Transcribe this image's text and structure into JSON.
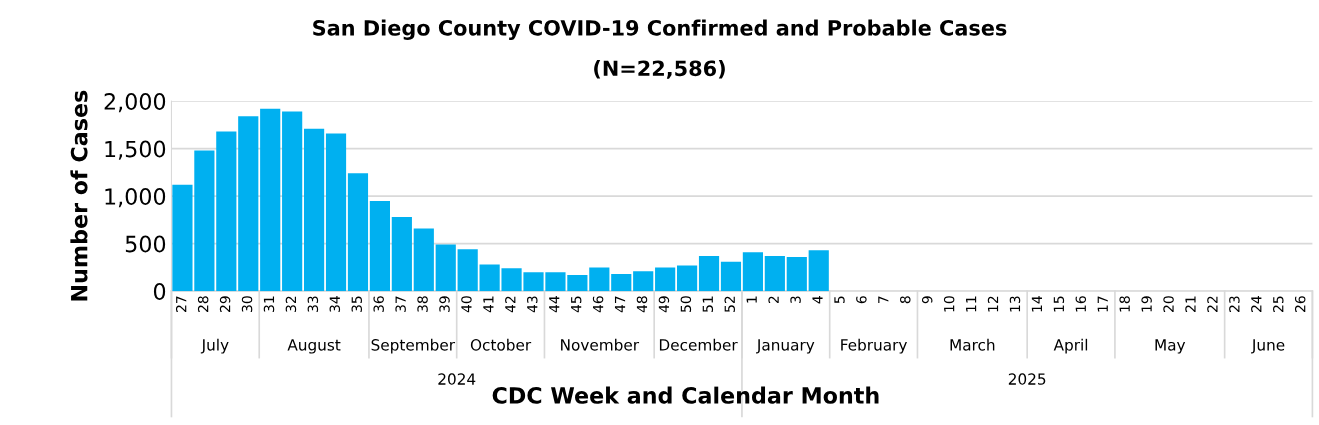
{
  "chart_data": {
    "type": "bar",
    "title": "San Diego County COVID-19 Confirmed and Probable Cases",
    "subtitle": "(N=22,586)",
    "xlabel": "CDC Week and Calendar Month",
    "ylabel": "Number of Cases",
    "categories": [
      "27",
      "28",
      "29",
      "30",
      "31",
      "32",
      "33",
      "34",
      "35",
      "36",
      "37",
      "38",
      "39",
      "40",
      "41",
      "42",
      "43",
      "44",
      "45",
      "46",
      "47",
      "48",
      "49",
      "50",
      "51",
      "52",
      "1",
      "2",
      "3",
      "4",
      "5",
      "6",
      "7",
      "8",
      "9",
      "10",
      "11",
      "12",
      "13",
      "14",
      "15",
      "16",
      "17",
      "18",
      "19",
      "20",
      "21",
      "22",
      "23",
      "24",
      "25",
      "26"
    ],
    "values": [
      1120,
      1480,
      1680,
      1840,
      1920,
      1890,
      1710,
      1660,
      1240,
      950,
      780,
      660,
      490,
      440,
      280,
      240,
      200,
      200,
      170,
      250,
      180,
      210,
      250,
      270,
      370,
      310,
      410,
      370,
      360,
      430,
      null,
      null,
      null,
      null,
      null,
      null,
      null,
      null,
      null,
      null,
      null,
      null,
      null,
      null,
      null,
      null,
      null,
      null,
      null,
      null,
      null,
      null
    ],
    "color": "#00b0f0",
    "ylim": [
      0,
      2000
    ],
    "yticks": [
      0,
      500,
      {
        "value": 1000,
        "label": "1,000"
      },
      {
        "value": 1500,
        "label": "1,500"
      },
      {
        "value": 2000,
        "label": "2,000"
      }
    ],
    "grid": "y",
    "annotations": [
      "July",
      "August",
      "September",
      "October",
      "November",
      "December",
      "January",
      "February",
      "March",
      "April",
      "May",
      "June",
      "2024",
      "2025"
    ]
  }
}
